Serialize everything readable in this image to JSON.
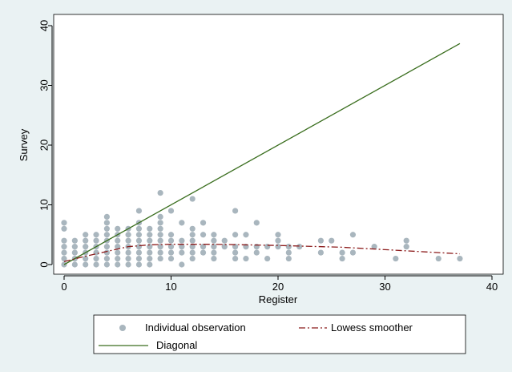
{
  "chart_data": {
    "type": "scatter",
    "xlabel": "Register",
    "ylabel": "Survey",
    "xlim": [
      0,
      40
    ],
    "ylim": [
      0,
      40
    ],
    "x_ticks": [
      0,
      10,
      20,
      30,
      40
    ],
    "y_ticks": [
      0,
      10,
      20,
      30,
      40
    ],
    "grid": false,
    "legend_position": "bottom",
    "series": [
      {
        "name": "Individual observation",
        "kind": "points",
        "color": "#a9b6be",
        "points": [
          [
            0,
            0
          ],
          [
            0,
            1
          ],
          [
            0,
            2
          ],
          [
            0,
            3
          ],
          [
            0,
            4
          ],
          [
            0,
            6
          ],
          [
            0,
            7
          ],
          [
            1,
            0
          ],
          [
            1,
            1
          ],
          [
            1,
            2
          ],
          [
            1,
            3
          ],
          [
            1,
            4
          ],
          [
            2,
            0
          ],
          [
            2,
            1
          ],
          [
            2,
            2
          ],
          [
            2,
            3
          ],
          [
            2,
            4
          ],
          [
            2,
            5
          ],
          [
            3,
            0
          ],
          [
            3,
            1
          ],
          [
            3,
            2
          ],
          [
            3,
            3
          ],
          [
            3,
            4
          ],
          [
            3,
            5
          ],
          [
            4,
            0
          ],
          [
            4,
            1
          ],
          [
            4,
            2
          ],
          [
            4,
            3
          ],
          [
            4,
            4
          ],
          [
            4,
            5
          ],
          [
            4,
            6
          ],
          [
            4,
            7
          ],
          [
            4,
            8
          ],
          [
            5,
            0
          ],
          [
            5,
            1
          ],
          [
            5,
            2
          ],
          [
            5,
            3
          ],
          [
            5,
            4
          ],
          [
            5,
            5
          ],
          [
            5,
            6
          ],
          [
            6,
            0
          ],
          [
            6,
            1
          ],
          [
            6,
            2
          ],
          [
            6,
            3
          ],
          [
            6,
            4
          ],
          [
            6,
            5
          ],
          [
            6,
            6
          ],
          [
            7,
            0
          ],
          [
            7,
            1
          ],
          [
            7,
            2
          ],
          [
            7,
            3
          ],
          [
            7,
            4
          ],
          [
            7,
            5
          ],
          [
            7,
            6
          ],
          [
            7,
            7
          ],
          [
            7,
            9
          ],
          [
            8,
            0
          ],
          [
            8,
            1
          ],
          [
            8,
            2
          ],
          [
            8,
            3
          ],
          [
            8,
            4
          ],
          [
            8,
            5
          ],
          [
            8,
            6
          ],
          [
            9,
            1
          ],
          [
            9,
            2
          ],
          [
            9,
            3
          ],
          [
            9,
            4
          ],
          [
            9,
            5
          ],
          [
            9,
            6
          ],
          [
            9,
            7
          ],
          [
            9,
            8
          ],
          [
            9,
            12
          ],
          [
            10,
            1
          ],
          [
            10,
            2
          ],
          [
            10,
            3
          ],
          [
            10,
            4
          ],
          [
            10,
            5
          ],
          [
            10,
            9
          ],
          [
            11,
            0
          ],
          [
            11,
            2
          ],
          [
            11,
            3
          ],
          [
            11,
            4
          ],
          [
            11,
            7
          ],
          [
            12,
            1
          ],
          [
            12,
            2
          ],
          [
            12,
            3
          ],
          [
            12,
            4
          ],
          [
            12,
            5
          ],
          [
            12,
            6
          ],
          [
            12,
            11
          ],
          [
            13,
            2
          ],
          [
            13,
            3
          ],
          [
            13,
            5
          ],
          [
            13,
            7
          ],
          [
            14,
            1
          ],
          [
            14,
            2
          ],
          [
            14,
            3
          ],
          [
            14,
            4
          ],
          [
            14,
            5
          ],
          [
            15,
            3
          ],
          [
            15,
            4
          ],
          [
            16,
            1
          ],
          [
            16,
            2
          ],
          [
            16,
            3
          ],
          [
            16,
            5
          ],
          [
            16,
            9
          ],
          [
            17,
            1
          ],
          [
            17,
            3
          ],
          [
            17,
            5
          ],
          [
            18,
            2
          ],
          [
            18,
            3
          ],
          [
            18,
            7
          ],
          [
            19,
            1
          ],
          [
            19,
            3
          ],
          [
            20,
            3
          ],
          [
            20,
            4
          ],
          [
            20,
            5
          ],
          [
            21,
            1
          ],
          [
            21,
            2
          ],
          [
            21,
            3
          ],
          [
            22,
            3
          ],
          [
            24,
            2
          ],
          [
            24,
            4
          ],
          [
            25,
            4
          ],
          [
            26,
            1
          ],
          [
            26,
            2
          ],
          [
            27,
            2
          ],
          [
            27,
            5
          ],
          [
            29,
            3
          ],
          [
            31,
            1
          ],
          [
            32,
            3
          ],
          [
            32,
            4
          ],
          [
            35,
            1
          ],
          [
            37,
            1
          ]
        ]
      },
      {
        "name": "Lowess smoother",
        "kind": "line",
        "color": "#8b1a1a",
        "dash": "dash-dot",
        "x": [
          0,
          2,
          4,
          6,
          8,
          10,
          14,
          20,
          26,
          32,
          37
        ],
        "y": [
          0.5,
          1.4,
          2.2,
          3.0,
          3.3,
          3.4,
          3.4,
          3.2,
          2.9,
          2.3,
          1.8
        ]
      },
      {
        "name": "Diagonal",
        "kind": "line",
        "color": "#3a6e1e",
        "x": [
          0,
          37
        ],
        "y": [
          0,
          37
        ]
      }
    ]
  },
  "legend": {
    "items": [
      {
        "label": "Individual observation"
      },
      {
        "label": "Lowess smoother"
      },
      {
        "label": "Diagonal"
      }
    ]
  }
}
